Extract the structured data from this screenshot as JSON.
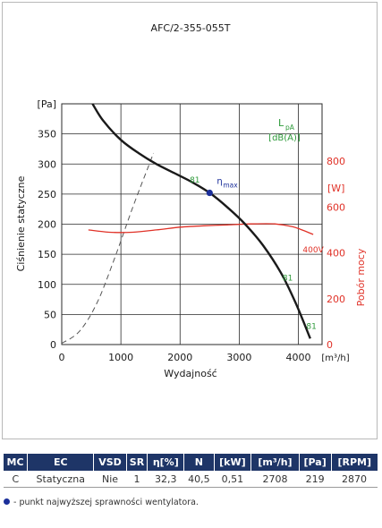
{
  "chart_data": {
    "type": "line",
    "title": "AFC/2-355-055T",
    "xlabel": "Wydajność",
    "xunit": "[m³/h]",
    "ylabel": "Ciśnienie statyczne",
    "yunit": "[Pa]",
    "y2label": "Pobór mocy",
    "y2unit": "[W]",
    "lpa_label": [
      "L",
      "pA",
      "[dB(A)]"
    ],
    "xlim": [
      0,
      4400
    ],
    "ylim": [
      0,
      400
    ],
    "y2lim": [
      0,
      1050
    ],
    "xticks": [
      0,
      1000,
      2000,
      3000,
      4000
    ],
    "yticks": [
      0,
      50,
      100,
      150,
      200,
      250,
      300,
      350
    ],
    "y2ticks": [
      0,
      200,
      400,
      600,
      800
    ],
    "grid": true,
    "series": [
      {
        "axis": "left",
        "color": "#1a1a1a",
        "points": [
          [
            520,
            400
          ],
          [
            700,
            372
          ],
          [
            1000,
            340
          ],
          [
            1300,
            318
          ],
          [
            1600,
            300
          ],
          [
            1900,
            285
          ],
          [
            2200,
            270
          ],
          [
            2500,
            252
          ],
          [
            2800,
            228
          ],
          [
            3100,
            200
          ],
          [
            3400,
            165
          ],
          [
            3700,
            120
          ],
          [
            3950,
            70
          ],
          [
            4200,
            10
          ]
        ],
        "labels": [
          {
            "x": 2250,
            "y": 269,
            "text": "81"
          },
          {
            "x": 3820,
            "y": 106,
            "text": "81"
          },
          {
            "x": 4220,
            "y": 26,
            "text": "81"
          }
        ]
      },
      {
        "axis": "left",
        "color": "#555555",
        "dash": true,
        "points": [
          [
            0,
            2
          ],
          [
            300,
            22
          ],
          [
            600,
            70
          ],
          [
            900,
            145
          ],
          [
            1200,
            228
          ],
          [
            1450,
            292
          ],
          [
            1550,
            318
          ]
        ]
      },
      {
        "axis": "right",
        "name": "400V",
        "color": "#e03127",
        "points": [
          [
            450,
            500
          ],
          [
            800,
            490
          ],
          [
            1200,
            490
          ],
          [
            1600,
            500
          ],
          [
            2000,
            512
          ],
          [
            2400,
            518
          ],
          [
            2800,
            522
          ],
          [
            3200,
            526
          ],
          [
            3600,
            526
          ],
          [
            3900,
            514
          ],
          [
            4100,
            496
          ],
          [
            4250,
            480
          ]
        ]
      }
    ],
    "efficiency_point": {
      "x": 2500,
      "y": 252,
      "label": "η",
      "sub": "max",
      "color": "#1b2f9a"
    }
  },
  "specs": {
    "headers": [
      "MC",
      "EC",
      "VSD",
      "SR",
      "η[%]",
      "N",
      "[kW]",
      "[m³/h]",
      "[Pa]",
      "[RPM]"
    ],
    "row": [
      "C",
      "Statyczna",
      "Nie",
      "1",
      "32,3",
      "40,5",
      "0,51",
      "2708",
      "219",
      "2870"
    ]
  },
  "footnote": "- punkt najwyższej sprawności wentylatora.",
  "colors": {
    "header_bg": "#1e3567",
    "lpa": "#2e9a3a",
    "power": "#e03127",
    "point": "#1b2f9a"
  }
}
